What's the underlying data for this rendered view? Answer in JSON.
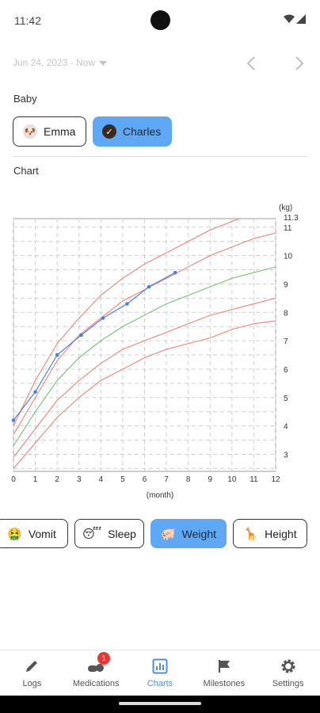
{
  "status_bar": {
    "time": "11:42"
  },
  "date_filter": {
    "range": "Jun 24, 2023 - Now"
  },
  "baby_section": {
    "label": "Baby",
    "babies": [
      {
        "name": "Emma",
        "selected": false
      },
      {
        "name": "Charles",
        "selected": true
      }
    ]
  },
  "chart_section": {
    "label": "Chart"
  },
  "chart_data": {
    "type": "line",
    "ylabel": "(kg)",
    "xlabel": "(month)",
    "xlim": [
      0,
      12
    ],
    "ylim": [
      2.4,
      11.3
    ],
    "x_ticks": [
      0,
      1,
      2,
      3,
      4,
      5,
      6,
      7,
      8,
      9,
      10,
      11,
      12
    ],
    "y_ticks": [
      3,
      4,
      5,
      6,
      7,
      8,
      9,
      10,
      11,
      11.3
    ],
    "x_tick_labels": [
      "0",
      "1",
      "2",
      "3",
      "4",
      "5",
      "6",
      "7",
      "8",
      "9",
      "10",
      "11",
      "12"
    ],
    "y_tick_labels": [
      "3",
      "4",
      "5",
      "6",
      "7",
      "8",
      "9",
      "10",
      "11",
      "11.3"
    ],
    "grid": true,
    "x": [
      0,
      1,
      2,
      3,
      4,
      5,
      6,
      7,
      8,
      9,
      10,
      11,
      12
    ],
    "series": [
      {
        "color": "#f28b82",
        "values": [
          2.5,
          3.4,
          4.3,
          5.0,
          5.6,
          6.0,
          6.4,
          6.7,
          6.9,
          7.1,
          7.4,
          7.6,
          7.7
        ]
      },
      {
        "color": "#f28b82",
        "values": [
          2.9,
          3.9,
          4.9,
          5.6,
          6.2,
          6.7,
          7.0,
          7.3,
          7.6,
          7.9,
          8.1,
          8.3,
          8.5
        ]
      },
      {
        "color": "#7cc47f",
        "values": [
          3.3,
          4.5,
          5.6,
          6.4,
          7.0,
          7.5,
          7.9,
          8.3,
          8.6,
          8.9,
          9.2,
          9.4,
          9.6
        ]
      },
      {
        "color": "#f28b82",
        "values": [
          3.7,
          5.0,
          6.3,
          7.2,
          7.8,
          8.4,
          8.8,
          9.2,
          9.6,
          10.0,
          10.3,
          10.6,
          10.8
        ]
      },
      {
        "color": "#f28b82",
        "values": [
          4.0,
          5.6,
          6.9,
          7.8,
          8.6,
          9.2,
          9.7,
          10.1,
          10.5,
          10.9,
          11.2,
          11.5,
          11.8
        ]
      },
      {
        "name": "Charles",
        "color": "#4a7fe8",
        "markers": true,
        "points": [
          [
            0,
            4.2
          ],
          [
            1,
            5.2
          ],
          [
            2,
            6.5
          ],
          [
            3.1,
            7.2
          ],
          [
            4.1,
            7.8
          ],
          [
            5.2,
            8.3
          ],
          [
            6.2,
            8.9
          ],
          [
            7.4,
            9.4
          ]
        ]
      }
    ]
  },
  "categories": [
    {
      "label": "Vomit",
      "emoji": "🤮",
      "active": false
    },
    {
      "label": "Sleep",
      "emoji": "😴",
      "active": false
    },
    {
      "label": "Weight",
      "emoji": "🐖",
      "active": true
    },
    {
      "label": "Height",
      "emoji": "🦒",
      "active": false
    }
  ],
  "bottom_nav": [
    {
      "label": "Logs",
      "icon": "pencil-icon",
      "active": false
    },
    {
      "label": "Medications",
      "icon": "pill-icon",
      "active": false,
      "badge": "1"
    },
    {
      "label": "Charts",
      "icon": "bar-chart-icon",
      "active": true
    },
    {
      "label": "Milestones",
      "icon": "flag-icon",
      "active": false
    },
    {
      "label": "Settings",
      "icon": "gear-icon",
      "active": false
    }
  ],
  "colors": {
    "accent": "#5fa8f5",
    "nav_active": "#4a90e2",
    "badge": "#e53935"
  }
}
